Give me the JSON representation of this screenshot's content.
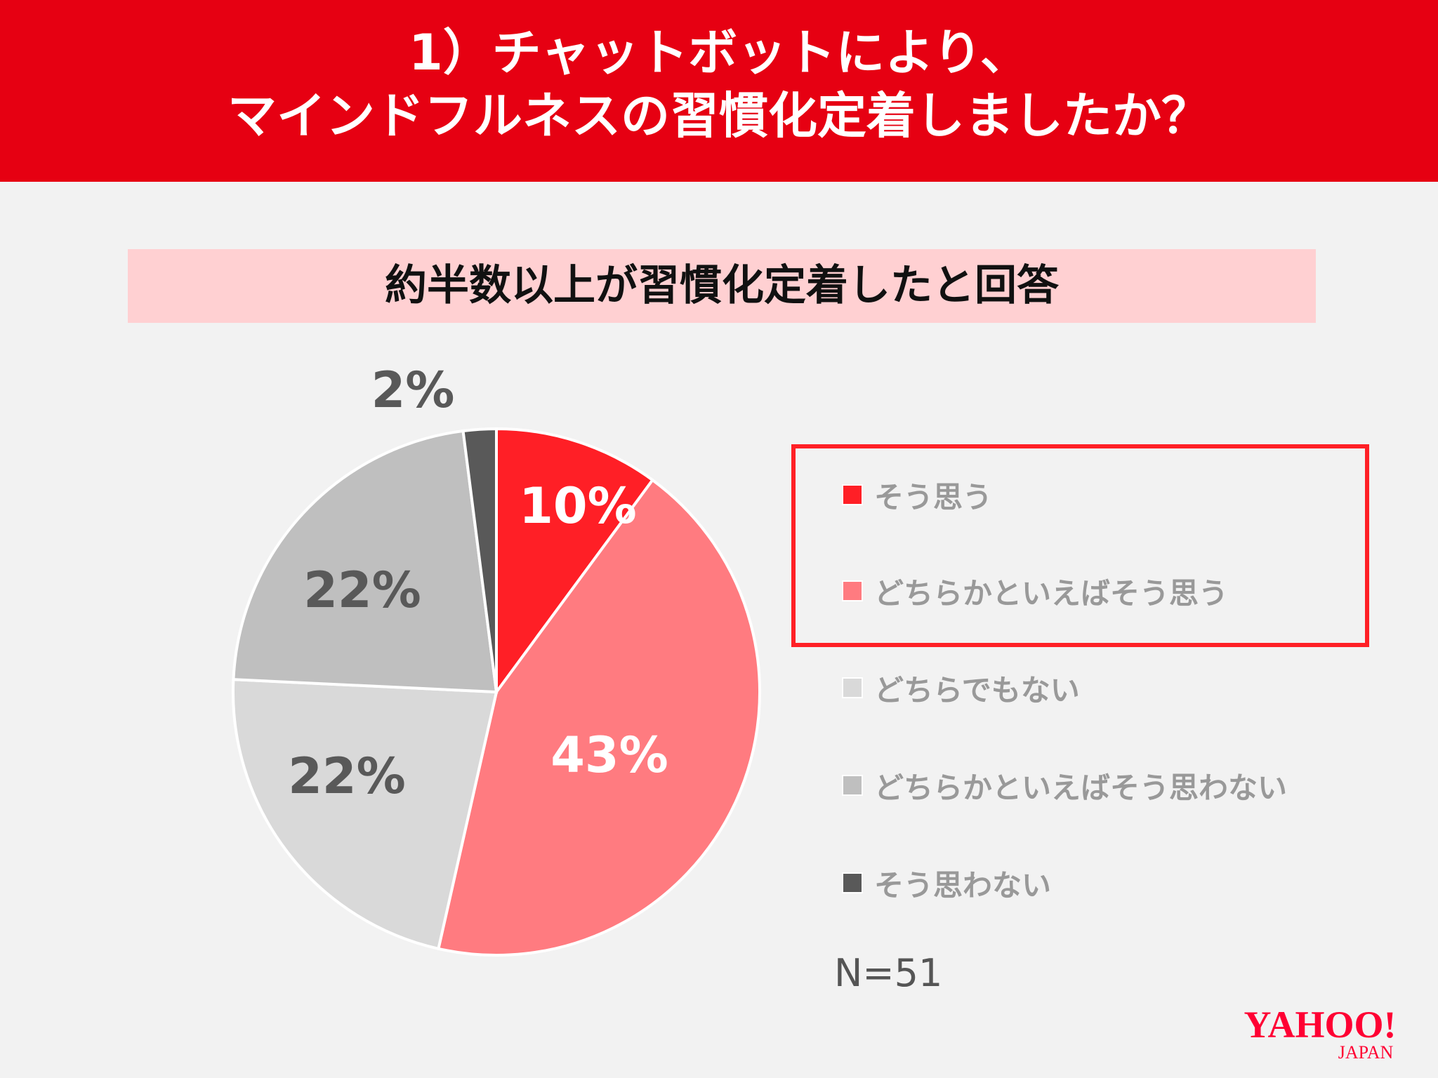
{
  "header": {
    "title_line1": "1）チャットボットにより、",
    "title_line2": "マインドフルネスの習慣化定着しましたか？"
  },
  "subtitle": "約半数以上が習慣化定着したと回答",
  "chart_data": {
    "type": "pie",
    "title": "",
    "categories": [
      "そう思う",
      "どちらかといえばそう思う",
      "どちらでもない",
      "どちらかといえばそう思わない",
      "そう思わない"
    ],
    "values": [
      10,
      43,
      22,
      22,
      2
    ],
    "labels": [
      "10%",
      "43%",
      "22%",
      "22%",
      "2%"
    ],
    "colors": [
      "#FF1F26",
      "#FF7B80",
      "#D9D9D9",
      "#BFBFBF",
      "#595959"
    ],
    "label_colors": [
      "#FFFFFF",
      "#FFFFFF",
      "#595959",
      "#595959",
      "#595959"
    ],
    "start": "12 o'clock, clockwise",
    "legend_position": "right",
    "highlighted_legend_items": [
      "そう思う",
      "どちらかといえばそう思う"
    ],
    "highlight_color": "#FF2026"
  },
  "note": "N=51",
  "logo": {
    "text": "YAHOO!",
    "sub": "JAPAN",
    "color": "#FF0033"
  }
}
